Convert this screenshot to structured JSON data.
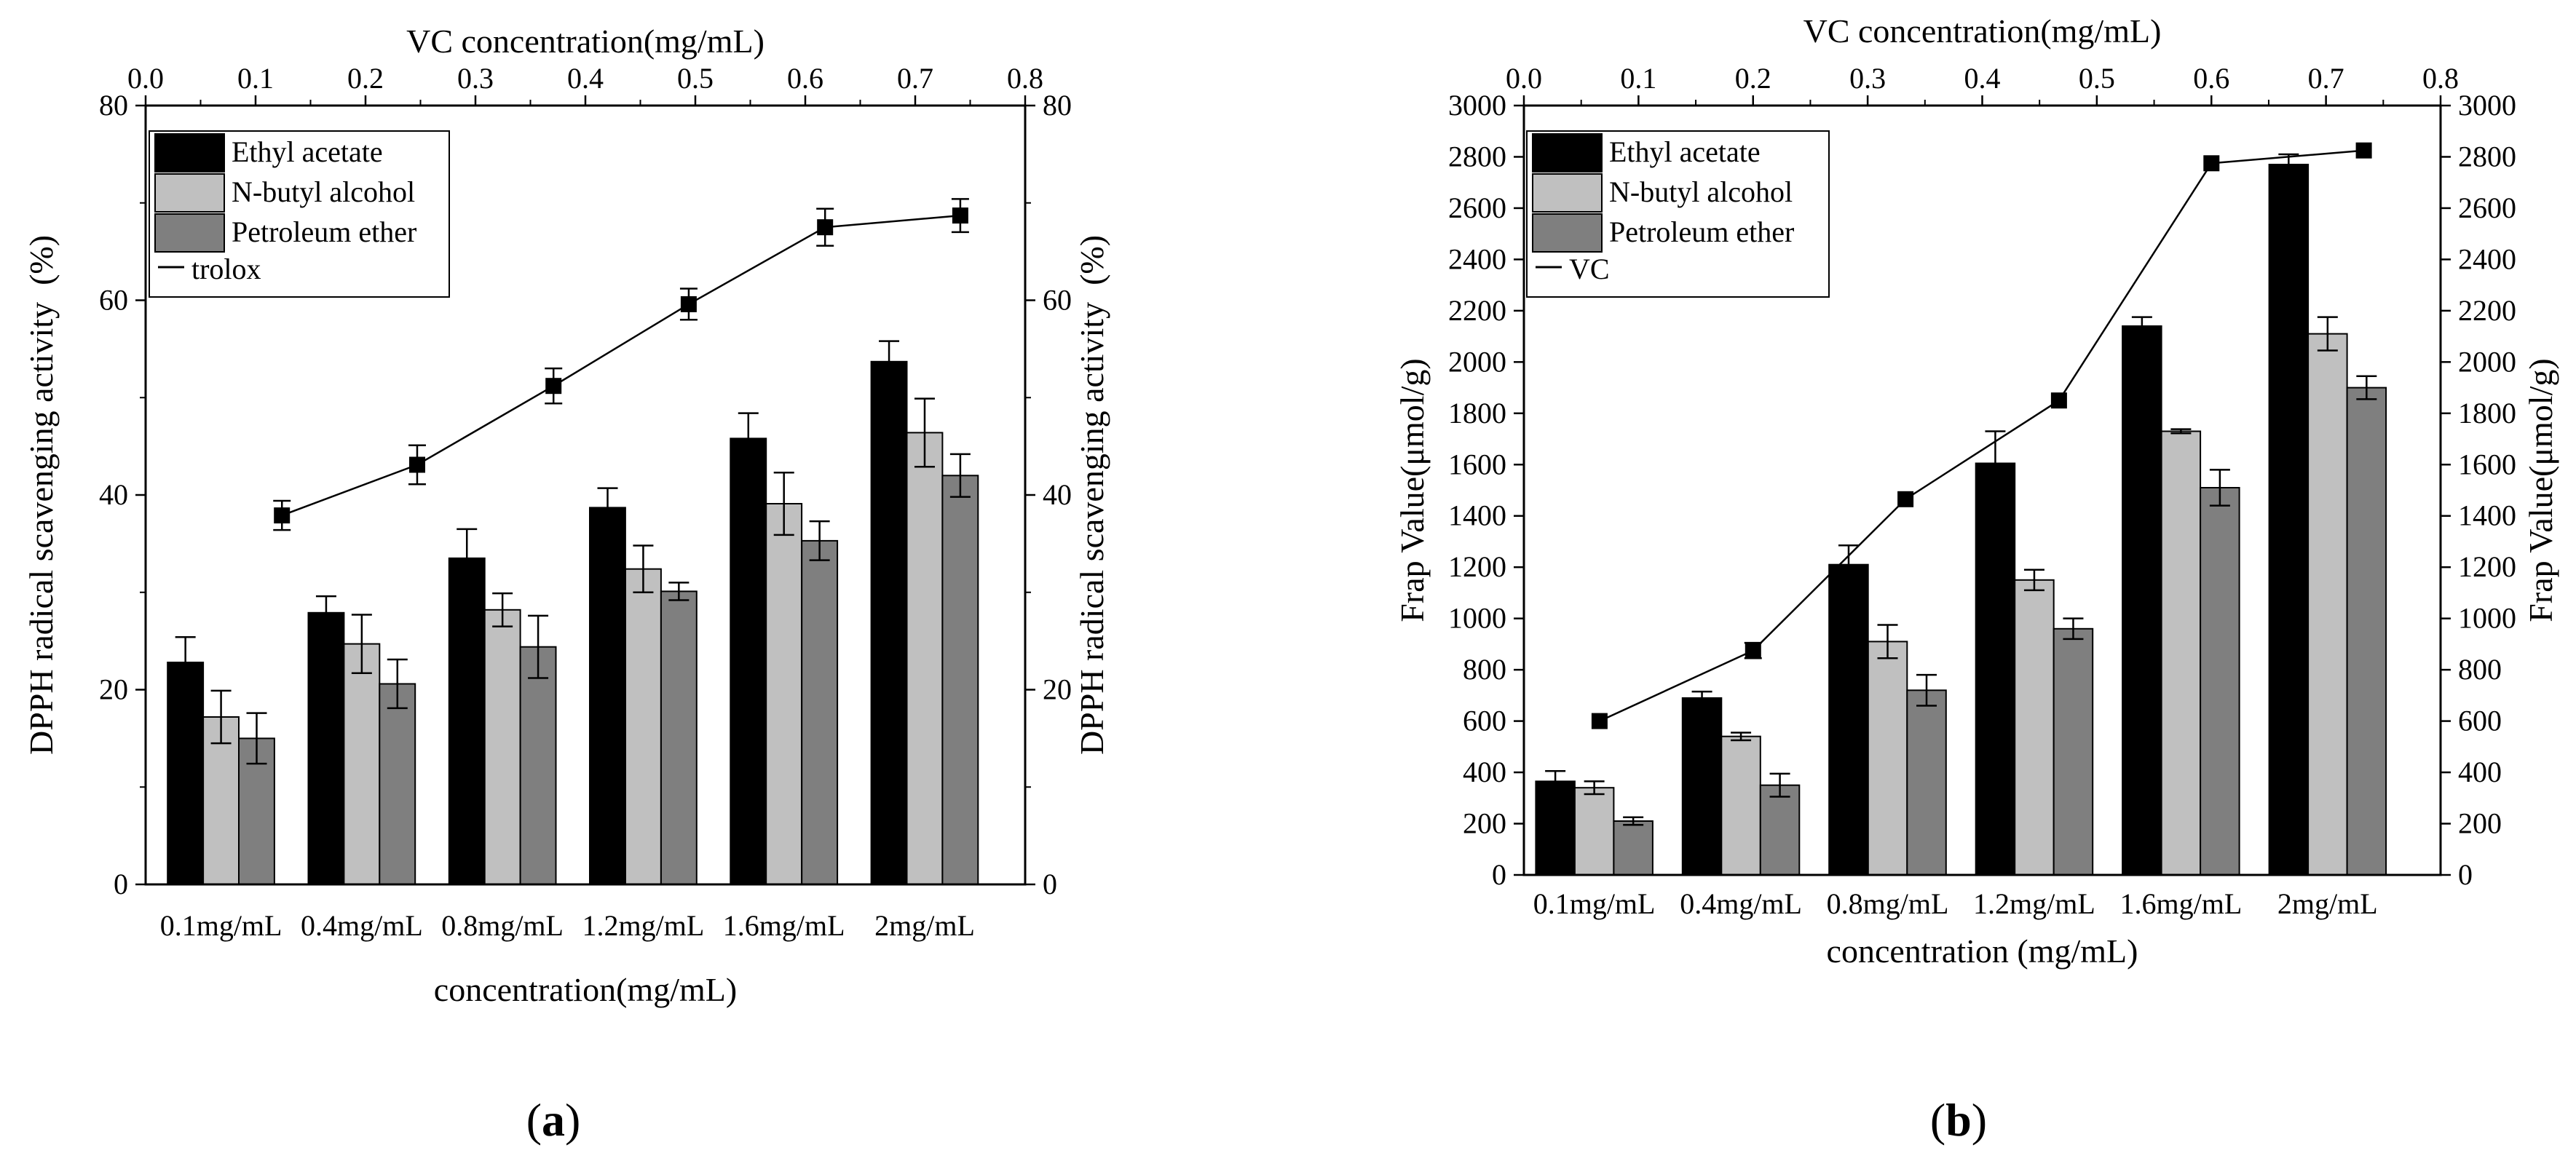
{
  "chart_data": [
    {
      "type": "bar",
      "panel_label_open": "(",
      "panel_label_letter": "a",
      "panel_label_close": ")",
      "categories": [
        "0.1mg/mL",
        "0.4mg/mL",
        "0.8mg/mL",
        "1.2mg/mL",
        "1.6mg/mL",
        "2mg/mL"
      ],
      "series": [
        {
          "name": "Ethyl acetate",
          "color": "#000000",
          "values": [
            22.8,
            27.9,
            33.5,
            38.7,
            45.8,
            53.7
          ],
          "errors": [
            2.6,
            1.7,
            3.0,
            2.0,
            2.6,
            2.1
          ]
        },
        {
          "name": "N-butyl alcohol",
          "color": "#c0c0c0",
          "values": [
            17.2,
            24.7,
            28.2,
            32.4,
            39.1,
            46.4
          ],
          "errors": [
            2.7,
            3.0,
            1.7,
            2.4,
            3.2,
            3.5
          ]
        },
        {
          "name": "Petroleum ether",
          "color": "#7f7f7f",
          "values": [
            15.0,
            20.6,
            24.4,
            30.1,
            35.3,
            42.0
          ],
          "errors": [
            2.6,
            2.5,
            3.2,
            0.9,
            2.0,
            2.2
          ]
        }
      ],
      "line_series": {
        "name": "trolox",
        "legend_text": "trolox",
        "x": [
          0.124,
          0.247,
          0.371,
          0.494,
          0.618,
          0.741
        ],
        "y": [
          37.9,
          43.1,
          51.2,
          59.6,
          67.5,
          68.7
        ],
        "errors": [
          1.5,
          2.0,
          1.8,
          1.6,
          1.9,
          1.7
        ]
      },
      "top_axis_title": "VC concentration(mg/mL)",
      "top_axis_ticks": [
        "0.0",
        "0.1",
        "0.2",
        "0.3",
        "0.4",
        "0.5",
        "0.6",
        "0.7",
        "0.8"
      ],
      "top_axis_range": [
        0.0,
        0.8
      ],
      "xlabel": "concentration(mg/mL)",
      "ylabel": "DPPH radical scavenging activity  (%)",
      "y2label": "DPPH radical scavenging activity  (%)",
      "ylim": [
        0,
        80
      ],
      "y_ticks": [
        "0",
        "20",
        "40",
        "60",
        "80"
      ],
      "y2_ticks": [
        "0",
        "20",
        "40",
        "60",
        "80"
      ],
      "legend_position": "top-left"
    },
    {
      "type": "bar",
      "panel_label_open": "(",
      "panel_label_letter": "b",
      "panel_label_close": ")",
      "categories": [
        "0.1mg/mL",
        "0.4mg/mL",
        "0.8mg/mL",
        "1.2mg/mL",
        "1.6mg/mL",
        "2mg/mL"
      ],
      "series": [
        {
          "name": "Ethyl acetate",
          "color": "#000000",
          "values": [
            365,
            690,
            1210,
            1605,
            2140,
            2770
          ],
          "errors": [
            40,
            25,
            75,
            125,
            35,
            40
          ]
        },
        {
          "name": "N-butyl alcohol",
          "color": "#c0c0c0",
          "values": [
            340,
            540,
            910,
            1150,
            1730,
            2110
          ],
          "errors": [
            25,
            15,
            65,
            40,
            8,
            65
          ]
        },
        {
          "name": "Petroleum ether",
          "color": "#7f7f7f",
          "values": [
            210,
            350,
            720,
            960,
            1510,
            1900
          ],
          "errors": [
            15,
            45,
            60,
            40,
            70,
            45
          ]
        }
      ],
      "line_series": {
        "name": "VC",
        "legend_text": "VC",
        "x": [
          0.066,
          0.2,
          0.333,
          0.467,
          0.6,
          0.733
        ],
        "y": [
          600,
          875,
          1465,
          1850,
          2775,
          2825
        ],
        "errors": [
          0,
          30,
          0,
          0,
          0,
          0
        ]
      },
      "top_axis_title": "VC concentration(mg/mL)",
      "top_axis_ticks": [
        "0.0",
        "0.1",
        "0.2",
        "0.3",
        "0.4",
        "0.5",
        "0.6",
        "0.7",
        "0.8"
      ],
      "top_axis_range": [
        0.0,
        0.8
      ],
      "xlabel": "concentration (mg/mL)",
      "ylabel": "Frap Value(μmol/g)",
      "y2label": "Frap Value(μmol/g)",
      "ylim": [
        0,
        3000
      ],
      "y_ticks": [
        "0",
        "200",
        "400",
        "600",
        "800",
        "1000",
        "1200",
        "1400",
        "1600",
        "1800",
        "2000",
        "2200",
        "2400",
        "2600",
        "2800",
        "3000"
      ],
      "y2_ticks": [
        "0",
        "200",
        "400",
        "600",
        "800",
        "1000",
        "1200",
        "1400",
        "1600",
        "1800",
        "2000",
        "2200",
        "2400",
        "2600",
        "2800",
        "3000"
      ],
      "legend_position": "top-left"
    }
  ]
}
